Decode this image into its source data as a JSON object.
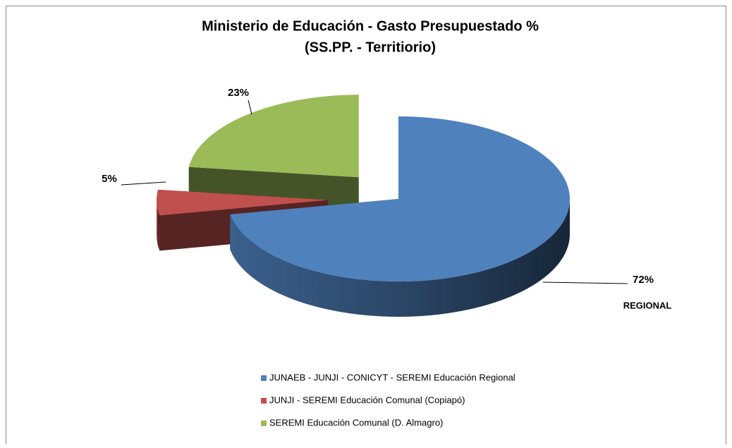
{
  "chart_data": {
    "type": "pie",
    "title": "Ministerio de Educación - Gasto Presupuestado %",
    "subtitle": "(SS.PP. - Territiorio)",
    "categories": [
      "JUNAEB - JUNJI - CONICYT - SEREMI Educación  Regional",
      "JUNJI - SEREMI Educación Comunal (Copiapó)",
      "SEREMI Educación Comunal (D. Almagro)"
    ],
    "values": [
      72,
      5,
      23
    ],
    "value_labels": [
      "72%",
      "5%",
      "23%"
    ],
    "colors": [
      "#4f81bd",
      "#c0504d",
      "#9bbb59"
    ],
    "annotation": "REGIONAL",
    "legend": "bottom"
  }
}
